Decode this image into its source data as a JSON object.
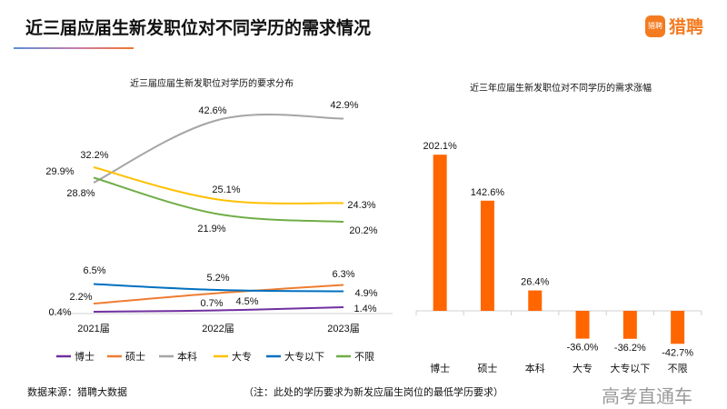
{
  "header": {
    "title": "近三届应届生新发职位对不同学历的需求情况",
    "logo_text": "猎聘",
    "logo_badge": "猎聘"
  },
  "footer": {
    "source": "数据来源：猎聘大数据",
    "note": "（注：此处的学历要求为新发应届生岗位的最低学历要求）"
  },
  "watermark": "高考直通车",
  "chart_data": [
    {
      "type": "line",
      "title": "近三届应届生新发职位对学历的要求分布",
      "categories": [
        "2021届",
        "2022届",
        "2023届"
      ],
      "legend_position": "bottom",
      "grid": false,
      "series": [
        {
          "name": "博士",
          "color": "#7030a0",
          "values": [
            0.4,
            0.7,
            1.4
          ],
          "labels": [
            "0.4%",
            "0.7%",
            "1.4%"
          ]
        },
        {
          "name": "硕士",
          "color": "#ed7d31",
          "values": [
            2.2,
            4.5,
            6.3
          ],
          "labels": [
            "2.2%",
            "4.5%",
            "6.3%"
          ]
        },
        {
          "name": "本科",
          "color": "#a5a5a5",
          "values": [
            28.8,
            42.6,
            42.9
          ],
          "labels": [
            "28.8%",
            "42.6%",
            "42.9%"
          ]
        },
        {
          "name": "大专",
          "color": "#ffc000",
          "values": [
            32.2,
            25.1,
            24.3
          ],
          "labels": [
            "32.2%",
            "25.1%",
            "24.3%"
          ]
        },
        {
          "name": "大专以下",
          "color": "#0070c0",
          "values": [
            6.5,
            5.2,
            4.9
          ],
          "labels": [
            "6.5%",
            "5.2%",
            "4.9%"
          ]
        },
        {
          "name": "不限",
          "color": "#70ad47",
          "values": [
            29.9,
            21.9,
            20.2
          ],
          "labels": [
            "29.9%",
            "21.9%",
            "20.2%"
          ]
        }
      ]
    },
    {
      "type": "bar",
      "title": "近三年应届生新发职位对不同学历的需求涨幅",
      "categories": [
        "博士",
        "硕士",
        "本科",
        "大专",
        "大专以下",
        "不限"
      ],
      "values": [
        202.1,
        142.6,
        26.4,
        -36.0,
        -36.2,
        -42.7
      ],
      "labels": [
        "202.1%",
        "142.6%",
        "26.4%",
        "-36.0%",
        "-36.2%",
        "-42.7%"
      ],
      "color": "#ff6600",
      "grid": false
    }
  ]
}
